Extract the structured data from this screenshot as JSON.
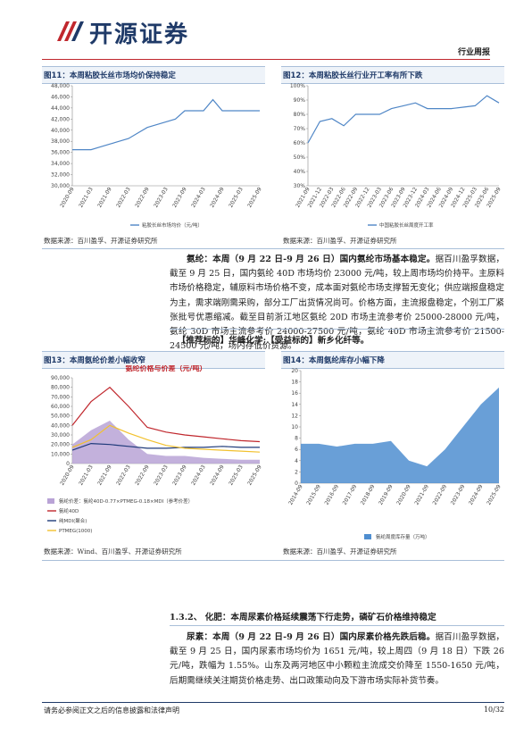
{
  "header": {
    "logo": "开源证券",
    "tag": "行业周报"
  },
  "figures": [
    {
      "label": "图11：本周粘胶长丝市场均价保持稳定",
      "source": "数据来源：百川盈孚、开源证券研究所",
      "chart_data": {
        "type": "line",
        "categories": [
          "2020-09",
          null,
          "2021-03",
          null,
          "2021-09",
          null,
          "2022-03",
          null,
          "2022-09",
          null,
          "2023-03",
          null,
          "2023-09",
          null,
          "2024-03",
          null,
          "2024-09",
          null,
          "2025-03",
          null,
          "2025-09"
        ],
        "series": [
          {
            "name": "粘胶长丝市场均价（元/吨）",
            "color": "#4f86c6",
            "values": [
              36500,
              36500,
              36500,
              37000,
              37500,
              38000,
              38500,
              39500,
              40500,
              41000,
              41500,
              42000,
              43500,
              43500,
              43500,
              45500,
              43500,
              43500,
              43500,
              43500,
              43500
            ]
          }
        ],
        "ylim": [
          30000,
          48000
        ],
        "yticks": [
          {
            "value": 30000,
            "label": "30,000"
          },
          {
            "value": 32000,
            "label": "32,000"
          },
          {
            "value": 34000,
            "label": "34,000"
          },
          {
            "value": 36000,
            "label": "36,000"
          },
          {
            "value": 38000,
            "label": "38,000"
          },
          {
            "value": 40000,
            "label": "40,000"
          },
          {
            "value": 42000,
            "label": "42,000"
          },
          {
            "value": 44000,
            "label": "44,000"
          },
          {
            "value": 46000,
            "label": "46,000"
          },
          {
            "value": 48000,
            "label": "48,000"
          }
        ]
      }
    },
    {
      "label": "图12：本周粘胶长丝行业开工率有所下跌",
      "source": "数据来源：百川盈孚、开源证券研究所",
      "chart_data": {
        "type": "line",
        "categories": [
          "2021-09",
          "2021-12",
          "2022-03",
          "2022-06",
          "2022-09",
          "2022-12",
          "2023-03",
          "2023-06",
          "2023-09",
          "2023-12",
          "2024-03",
          "2024-06",
          "2024-09",
          "2024-12",
          "2025-03",
          "2025-06",
          "2025-09"
        ],
        "series": [
          {
            "name": "中国粘胶长丝周度开工率",
            "color": "#4f86c6",
            "values": [
              60,
              75,
              77,
              72,
              80,
              80,
              80,
              84,
              86,
              88,
              84,
              84,
              84,
              85,
              86,
              93,
              88
            ]
          }
        ],
        "ylim": [
          30,
          100
        ],
        "yticks": [
          {
            "value": 30,
            "label": "30%"
          },
          {
            "value": 40,
            "label": "40%"
          },
          {
            "value": 50,
            "label": "50%"
          },
          {
            "value": 60,
            "label": "60%"
          },
          {
            "value": 70,
            "label": "70%"
          },
          {
            "value": 80,
            "label": "80%"
          },
          {
            "value": 90,
            "label": "90%"
          },
          {
            "value": 100,
            "label": "100%"
          }
        ]
      }
    },
    {
      "label": "图13：本周氨纶价差小幅收窄",
      "source": "数据来源：Wind、百川盈孚、开源证券研究所",
      "chart_data": {
        "type": "line",
        "title": "氨纶价格与价差（元/吨）",
        "categories": [
          "2020-09",
          "2021-03",
          "2021-09",
          "2022-03",
          "2022-09",
          "2023-03",
          "2023-09",
          "2024-03",
          "2024-09",
          "2025-03",
          "2025-09"
        ],
        "series": [
          {
            "name": "氨纶价差：氨纶40D-0.77×PTMEG-0.18×MDI（参考价差）",
            "color": "#b9a3d6",
            "kind": "area",
            "values": [
              20000,
              35000,
              45000,
              25000,
              10000,
              8000,
              8000,
              6000,
              5000,
              4000,
              4000
            ]
          },
          {
            "name": "氨纶40D",
            "color": "#c0272d",
            "values": [
              40000,
              65000,
              80000,
              60000,
              38000,
              33000,
              30000,
              28000,
              26000,
              24000,
              23000
            ]
          },
          {
            "name": "纯MDI(聚合)",
            "color": "#1f3a7a",
            "values": [
              14000,
              21000,
              20000,
              18000,
              16000,
              16000,
              17000,
              17000,
              18000,
              17000,
              17000
            ]
          },
          {
            "name": "PTMEG(1000)",
            "color": "#f2c12e",
            "values": [
              17000,
              25000,
              40000,
              32000,
              25000,
              19000,
              16000,
              15000,
              14000,
              13000,
              12000
            ]
          }
        ],
        "ylim": [
          0,
          90000
        ],
        "yticks": [
          0,
          {
            "value": 10000,
            "label": "10,000"
          },
          {
            "value": 20000,
            "label": "20,000"
          },
          {
            "value": 30000,
            "label": "30,000"
          },
          {
            "value": 40000,
            "label": "40,000"
          },
          {
            "value": 50000,
            "label": "50,000"
          },
          {
            "value": 60000,
            "label": "60,000"
          },
          {
            "value": 70000,
            "label": "70,000"
          },
          {
            "value": 80000,
            "label": "80,000"
          },
          {
            "value": 90000,
            "label": "90,000"
          }
        ]
      }
    },
    {
      "label": "图14：本周氨纶库存小幅下降",
      "source": "数据来源：百川盈孚、开源证券研究所",
      "chart_data": {
        "type": "area",
        "categories": [
          "2014-09",
          "2015-09",
          "2016-09",
          "2017-09",
          "2018-09",
          "2019-09",
          "2020-09",
          "2021-09",
          "2022-09",
          "2023-09",
          "2024-09",
          "2025-09"
        ],
        "series": [
          {
            "name": "氨纶周度库存量（万吨）",
            "color": "#4f8ed0",
            "values": [
              7,
              7,
              6.5,
              7,
              7,
              7.5,
              4,
              3,
              6,
              10,
              14,
              17
            ]
          }
        ],
        "ylim": [
          0,
          20
        ],
        "yticks": [
          0,
          2,
          4,
          6,
          8,
          10,
          12,
          14,
          16,
          18,
          20
        ]
      }
    }
  ],
  "p1": {
    "lead": "氨纶：本周（9 月 22 日-9 月 26 日）国内氨纶市场基本稳定。",
    "body": "据百川盈孚数据，截至 9 月 25 日，国内氨纶 40D 市场均价 23000 元/吨，较上周市场均价持平。主原料市场价格稳定，辅原料市场价格不变，成本面对氨纶市场支撑暂无变化；供应端报盘稳定为主，需求端刚需采购，部分工厂出货情况尚可。价格方面，主流报盘稳定，个别工厂紧张批号优惠缩减。截至目前浙江地区氨纶 20D 市场主流参考价 25000-28000 元/吨，氨纶 30D 市场主流参考价 24000-27500 元/吨，氨纶 40D 市场主流参考价 21500-24500 元/吨，场内存低价货源。"
  },
  "recommend": "【推荐标的】华峰化学;【受益标的】新乡化纤等。",
  "section": "1.3.2、 化肥：本周尿素价格延续震荡下行走势，磷矿石价格维持稳定",
  "p2": {
    "lead": "尿素：本周（9 月 22 日-9 月 26 日）国内尿素价格先跌后稳。",
    "body": "据百川盈孚数据，截至 9 月 25 日，国内尿素市场均价为 1651 元/吨，较上周四（9 月 18 日）下跌 26 元/吨，跌幅为 1.55%。山东及两河地区中小颗粒主流成交价降至 1550-1650 元/吨，后期需继续关注期货价格走势、出口政策动向及下游市场实际补货节奏。"
  },
  "footer": {
    "disclaimer": "请务必参阅正文之后的信息披露和法律声明",
    "page": "10/32"
  }
}
